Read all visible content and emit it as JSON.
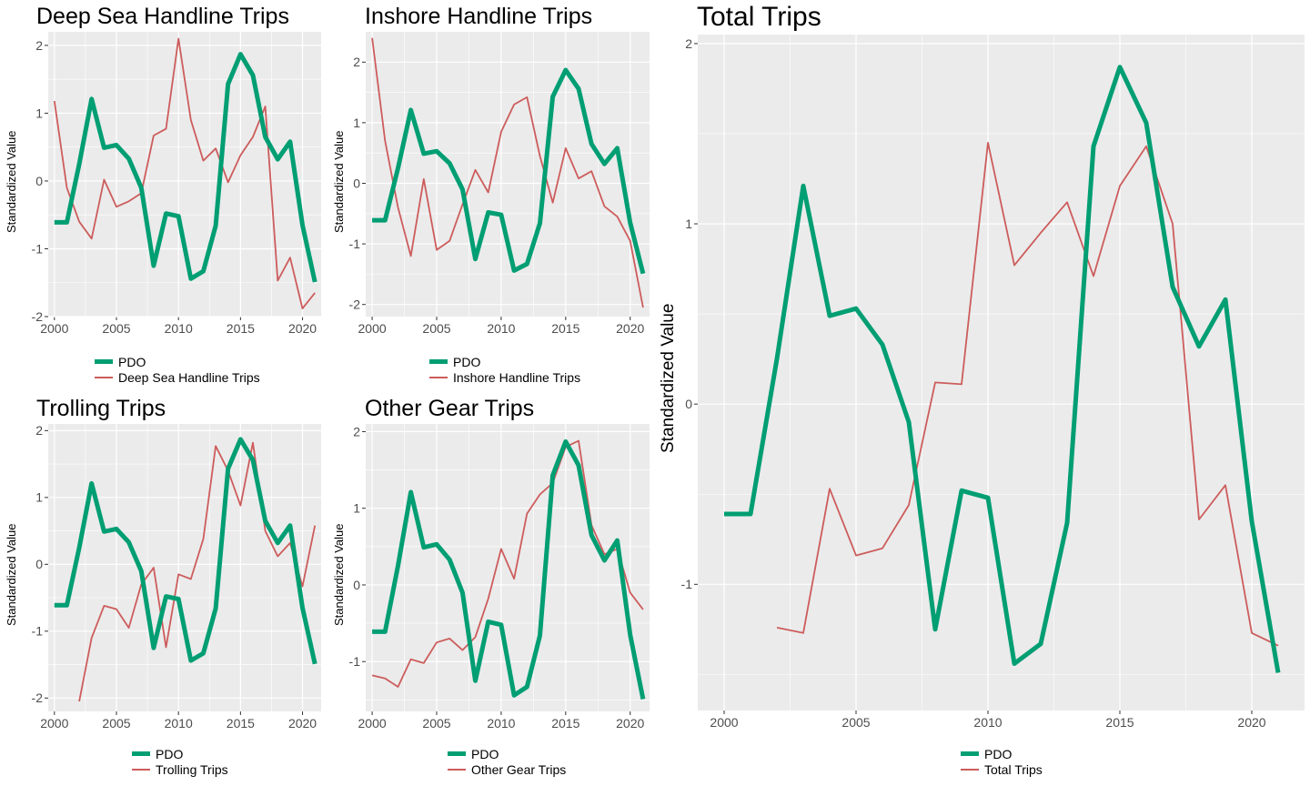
{
  "colors": {
    "pdo": "#009E73",
    "trips": "#CD5C5C",
    "panel_bg": "#EBEBEB",
    "grid": "#FFFFFF"
  },
  "ylabel": "Standardized Value",
  "legend_pdo": "PDO",
  "chart_data": [
    {
      "type": "line",
      "title": "Deep Sea Handline Trips",
      "xlabel": "",
      "ylabel": "Standardized Value",
      "xlim": [
        1999.5,
        2021.5
      ],
      "ylim": [
        -2.0,
        2.2
      ],
      "x_ticks": [
        2000,
        2005,
        2010,
        2015,
        2020
      ],
      "y_ticks": [
        -2,
        -1,
        0,
        1,
        2
      ],
      "grid": true,
      "legend": "bottom",
      "series": [
        {
          "name": "PDO",
          "x": [
            2000,
            2001,
            2002,
            2003,
            2004,
            2005,
            2006,
            2007,
            2008,
            2009,
            2010,
            2011,
            2012,
            2013,
            2014,
            2015,
            2016,
            2017,
            2018,
            2019,
            2020,
            2021
          ],
          "values": [
            -0.61,
            -0.61,
            0.25,
            1.21,
            0.49,
            0.53,
            0.33,
            -0.1,
            -1.25,
            -0.48,
            -0.52,
            -1.44,
            -1.33,
            -0.66,
            1.43,
            1.87,
            1.56,
            0.65,
            0.32,
            0.58,
            -0.65,
            -1.49
          ]
        },
        {
          "name": "Deep Sea Handline Trips",
          "x": [
            2000,
            2001,
            2002,
            2003,
            2004,
            2005,
            2006,
            2007,
            2008,
            2009,
            2010,
            2011,
            2012,
            2013,
            2014,
            2015,
            2016,
            2017,
            2018,
            2019,
            2020,
            2021
          ],
          "values": [
            1.18,
            -0.1,
            -0.6,
            -0.85,
            0.02,
            -0.38,
            -0.3,
            -0.18,
            0.67,
            0.77,
            2.1,
            0.9,
            0.3,
            0.48,
            -0.02,
            0.38,
            0.65,
            1.1,
            -1.47,
            -1.13,
            -1.88,
            -1.65
          ]
        }
      ]
    },
    {
      "type": "line",
      "title": "Inshore Handline Trips",
      "xlabel": "",
      "ylabel": "Standardized Value",
      "xlim": [
        1999.5,
        2021.5
      ],
      "ylim": [
        -2.2,
        2.5
      ],
      "x_ticks": [
        2000,
        2005,
        2010,
        2015,
        2020
      ],
      "y_ticks": [
        -2,
        -1,
        0,
        1,
        2
      ],
      "grid": true,
      "legend": "bottom",
      "series": [
        {
          "name": "PDO",
          "x": [
            2000,
            2001,
            2002,
            2003,
            2004,
            2005,
            2006,
            2007,
            2008,
            2009,
            2010,
            2011,
            2012,
            2013,
            2014,
            2015,
            2016,
            2017,
            2018,
            2019,
            2020,
            2021
          ],
          "values": [
            -0.61,
            -0.61,
            0.25,
            1.21,
            0.49,
            0.53,
            0.33,
            -0.1,
            -1.25,
            -0.48,
            -0.52,
            -1.44,
            -1.33,
            -0.66,
            1.43,
            1.87,
            1.56,
            0.65,
            0.32,
            0.58,
            -0.65,
            -1.49
          ]
        },
        {
          "name": "Inshore Handline Trips",
          "x": [
            2000,
            2001,
            2002,
            2003,
            2004,
            2005,
            2006,
            2007,
            2008,
            2009,
            2010,
            2011,
            2012,
            2013,
            2014,
            2015,
            2016,
            2017,
            2018,
            2019,
            2020,
            2021
          ],
          "values": [
            2.4,
            0.7,
            -0.4,
            -1.2,
            0.07,
            -1.1,
            -0.95,
            -0.35,
            0.22,
            -0.15,
            0.85,
            1.3,
            1.42,
            0.45,
            -0.32,
            0.58,
            0.08,
            0.2,
            -0.38,
            -0.55,
            -0.95,
            -2.05
          ]
        }
      ]
    },
    {
      "type": "line",
      "title": "Trolling Trips",
      "xlabel": "",
      "ylabel": "Standardized Value",
      "xlim": [
        1999.5,
        2021.5
      ],
      "ylim": [
        -2.2,
        2.1
      ],
      "x_ticks": [
        2000,
        2005,
        2010,
        2015,
        2020
      ],
      "y_ticks": [
        -2,
        -1,
        0,
        1,
        2
      ],
      "grid": true,
      "legend": "bottom",
      "series": [
        {
          "name": "PDO",
          "x": [
            2000,
            2001,
            2002,
            2003,
            2004,
            2005,
            2006,
            2007,
            2008,
            2009,
            2010,
            2011,
            2012,
            2013,
            2014,
            2015,
            2016,
            2017,
            2018,
            2019,
            2020,
            2021
          ],
          "values": [
            -0.61,
            -0.61,
            0.25,
            1.21,
            0.49,
            0.53,
            0.33,
            -0.1,
            -1.25,
            -0.48,
            -0.52,
            -1.44,
            -1.33,
            -0.66,
            1.43,
            1.87,
            1.56,
            0.65,
            0.32,
            0.58,
            -0.65,
            -1.49
          ]
        },
        {
          "name": "Trolling Trips",
          "x": [
            2002,
            2003,
            2004,
            2005,
            2006,
            2007,
            2008,
            2009,
            2010,
            2011,
            2012,
            2013,
            2014,
            2015,
            2016,
            2017,
            2018,
            2019,
            2020,
            2021
          ],
          "values": [
            -2.05,
            -1.1,
            -0.62,
            -0.67,
            -0.95,
            -0.3,
            -0.05,
            -1.24,
            -0.15,
            -0.22,
            0.38,
            1.77,
            1.4,
            0.88,
            1.82,
            0.5,
            0.12,
            0.32,
            -0.33,
            0.58
          ]
        }
      ]
    },
    {
      "type": "line",
      "title": "Other Gear Trips",
      "xlabel": "",
      "ylabel": "Standardized Value",
      "xlim": [
        1999.5,
        2021.5
      ],
      "ylim": [
        -1.65,
        2.1
      ],
      "x_ticks": [
        2000,
        2005,
        2010,
        2015,
        2020
      ],
      "y_ticks": [
        -1,
        0,
        1,
        2
      ],
      "grid": true,
      "legend": "bottom",
      "series": [
        {
          "name": "PDO",
          "x": [
            2000,
            2001,
            2002,
            2003,
            2004,
            2005,
            2006,
            2007,
            2008,
            2009,
            2010,
            2011,
            2012,
            2013,
            2014,
            2015,
            2016,
            2017,
            2018,
            2019,
            2020,
            2021
          ],
          "values": [
            -0.61,
            -0.61,
            0.25,
            1.21,
            0.49,
            0.53,
            0.33,
            -0.1,
            -1.25,
            -0.48,
            -0.52,
            -1.44,
            -1.33,
            -0.66,
            1.43,
            1.87,
            1.56,
            0.65,
            0.32,
            0.58,
            -0.65,
            -1.49
          ]
        },
        {
          "name": "Other Gear Trips",
          "x": [
            2000,
            2001,
            2002,
            2003,
            2004,
            2005,
            2006,
            2007,
            2008,
            2009,
            2010,
            2011,
            2012,
            2013,
            2014,
            2015,
            2016,
            2017,
            2018,
            2019,
            2020,
            2021
          ],
          "values": [
            -1.18,
            -1.22,
            -1.33,
            -0.97,
            -1.02,
            -0.75,
            -0.7,
            -0.85,
            -0.68,
            -0.18,
            0.47,
            0.08,
            0.93,
            1.18,
            1.33,
            1.8,
            1.88,
            0.78,
            0.4,
            0.47,
            -0.1,
            -0.32
          ]
        }
      ]
    },
    {
      "type": "line",
      "title": "Total Trips",
      "xlabel": "",
      "ylabel": "Standardized Value",
      "xlim": [
        1999.0,
        2022.0
      ],
      "ylim": [
        -1.7,
        2.05
      ],
      "x_ticks": [
        2000,
        2005,
        2010,
        2015,
        2020
      ],
      "y_ticks": [
        -1,
        0,
        1,
        2
      ],
      "grid": true,
      "legend": "bottom",
      "series": [
        {
          "name": "PDO",
          "x": [
            2000,
            2001,
            2002,
            2003,
            2004,
            2005,
            2006,
            2007,
            2008,
            2009,
            2010,
            2011,
            2012,
            2013,
            2014,
            2015,
            2016,
            2017,
            2018,
            2019,
            2020,
            2021
          ],
          "values": [
            -0.61,
            -0.61,
            0.25,
            1.21,
            0.49,
            0.53,
            0.33,
            -0.1,
            -1.25,
            -0.48,
            -0.52,
            -1.44,
            -1.33,
            -0.66,
            1.43,
            1.87,
            1.56,
            0.65,
            0.32,
            0.58,
            -0.65,
            -1.49
          ]
        },
        {
          "name": "Total Trips",
          "x": [
            2002,
            2003,
            2004,
            2005,
            2006,
            2007,
            2008,
            2009,
            2010,
            2011,
            2012,
            2013,
            2014,
            2015,
            2016,
            2017,
            2018,
            2019,
            2020,
            2021
          ],
          "values": [
            -1.24,
            -1.27,
            -0.47,
            -0.84,
            -0.8,
            -0.56,
            0.12,
            0.11,
            1.45,
            0.77,
            0.95,
            1.12,
            0.71,
            1.21,
            1.43,
            1.0,
            -0.64,
            -0.45,
            -1.27,
            -1.34
          ]
        }
      ]
    }
  ]
}
